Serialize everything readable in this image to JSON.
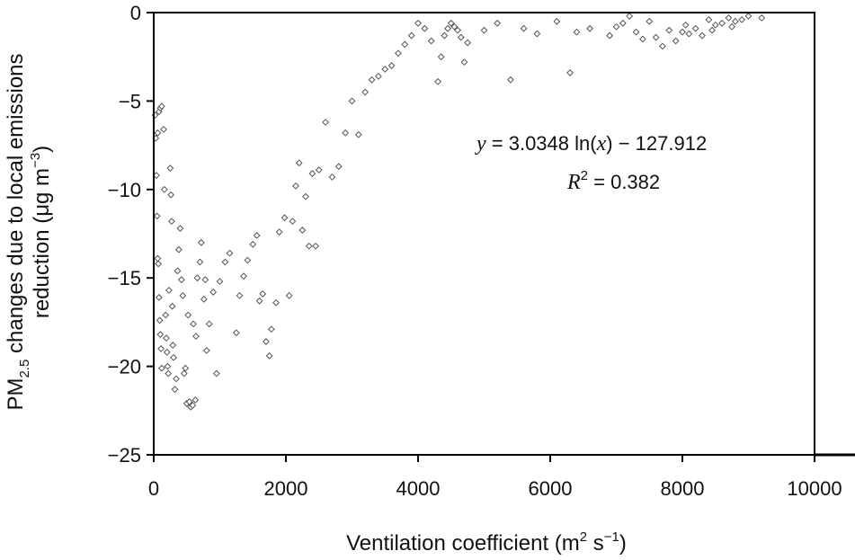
{
  "chart_data": {
    "type": "scatter",
    "xlabel": "Ventilation coefficient (m² s⁻¹)",
    "xlabel_parts": {
      "main": "Ventilation coefficient (m",
      "sup1": "2",
      "mid": " s",
      "sup2": "−1",
      "end": ")"
    },
    "ylabel_line1_parts": {
      "a": "PM",
      "sub": "2.5",
      "b": " changes due to local emissions"
    },
    "ylabel_line2_parts": {
      "a": "reduction (μg m",
      "sup": "−3",
      "b": ")"
    },
    "xlim": [
      0,
      10000
    ],
    "ylim": [
      -25,
      0
    ],
    "x_ticks": [
      0,
      2000,
      4000,
      6000,
      8000,
      10000
    ],
    "x_tick_labels": [
      "0",
      "2000",
      "4000",
      "6000",
      "8000",
      "10000"
    ],
    "y_ticks": [
      0,
      -5,
      -10,
      -15,
      -20,
      -25
    ],
    "y_tick_labels": [
      "0",
      "−5",
      "−10",
      "−15",
      "−20",
      "−25"
    ],
    "grid": false,
    "marker": "open-diamond",
    "marker_color": "#555555",
    "fit": {
      "a": 3.0348,
      "b": -127.912,
      "curve_color": "#000000",
      "equation_parts": {
        "y": "y",
        "eq1": " = 3.0348 ln(",
        "x": "x",
        "eq2": ") − 127.912"
      },
      "r2_parts": {
        "r": "R",
        "sup": "2",
        "rest": " = 0.382"
      }
    },
    "points": [
      [
        20,
        -5.8
      ],
      [
        30,
        -7.1
      ],
      [
        40,
        -9.2
      ],
      [
        50,
        -11.5
      ],
      [
        60,
        -13.9
      ],
      [
        70,
        -14.2
      ],
      [
        80,
        -16.1
      ],
      [
        90,
        -17.4
      ],
      [
        100,
        -18.2
      ],
      [
        110,
        -19.0
      ],
      [
        120,
        -20.1
      ],
      [
        60,
        -6.8
      ],
      [
        80,
        -5.6
      ],
      [
        100,
        -5.4
      ],
      [
        120,
        -5.3
      ],
      [
        150,
        -6.6
      ],
      [
        160,
        -10.0
      ],
      [
        180,
        -17.1
      ],
      [
        190,
        -18.4
      ],
      [
        200,
        -19.2
      ],
      [
        210,
        -20.0
      ],
      [
        220,
        -20.4
      ],
      [
        230,
        -15.7
      ],
      [
        250,
        -8.8
      ],
      [
        260,
        -10.3
      ],
      [
        270,
        -11.8
      ],
      [
        280,
        -16.6
      ],
      [
        290,
        -18.8
      ],
      [
        300,
        -19.5
      ],
      [
        320,
        -21.3
      ],
      [
        340,
        -20.7
      ],
      [
        360,
        -14.6
      ],
      [
        380,
        -13.4
      ],
      [
        400,
        -12.2
      ],
      [
        420,
        -15.1
      ],
      [
        440,
        -16.0
      ],
      [
        460,
        -20.4
      ],
      [
        480,
        -20.1
      ],
      [
        500,
        -22.1
      ],
      [
        540,
        -22.0
      ],
      [
        560,
        -22.3
      ],
      [
        590,
        -22.2
      ],
      [
        630,
        -21.9
      ],
      [
        520,
        -17.1
      ],
      [
        600,
        -17.6
      ],
      [
        640,
        -18.3
      ],
      [
        660,
        -15.0
      ],
      [
        700,
        -14.1
      ],
      [
        720,
        -13.0
      ],
      [
        760,
        -16.2
      ],
      [
        780,
        -15.1
      ],
      [
        800,
        -19.1
      ],
      [
        840,
        -17.6
      ],
      [
        900,
        -15.8
      ],
      [
        950,
        -20.4
      ],
      [
        1000,
        -15.2
      ],
      [
        1080,
        -14.1
      ],
      [
        1150,
        -13.6
      ],
      [
        1250,
        -18.1
      ],
      [
        1300,
        -16.0
      ],
      [
        1360,
        -14.9
      ],
      [
        1420,
        -14.0
      ],
      [
        1500,
        -13.1
      ],
      [
        1560,
        -12.6
      ],
      [
        1600,
        -16.3
      ],
      [
        1650,
        -15.9
      ],
      [
        1700,
        -18.6
      ],
      [
        1750,
        -19.4
      ],
      [
        1780,
        -17.9
      ],
      [
        1850,
        -16.4
      ],
      [
        1900,
        -12.4
      ],
      [
        1980,
        -11.6
      ],
      [
        2050,
        -16.0
      ],
      [
        2100,
        -11.8
      ],
      [
        2150,
        -9.8
      ],
      [
        2250,
        -12.3
      ],
      [
        2350,
        -13.2
      ],
      [
        2450,
        -13.2
      ],
      [
        2200,
        -8.5
      ],
      [
        2300,
        -10.4
      ],
      [
        2400,
        -9.1
      ],
      [
        2500,
        -8.9
      ],
      [
        2600,
        -6.2
      ],
      [
        2700,
        -9.3
      ],
      [
        2800,
        -8.7
      ],
      [
        2900,
        -6.8
      ],
      [
        3000,
        -5.0
      ],
      [
        3100,
        -6.9
      ],
      [
        3200,
        -4.5
      ],
      [
        3300,
        -3.8
      ],
      [
        3400,
        -3.6
      ],
      [
        3500,
        -3.2
      ],
      [
        3600,
        -3.0
      ],
      [
        3700,
        -2.3
      ],
      [
        3800,
        -1.8
      ],
      [
        3900,
        -1.3
      ],
      [
        4000,
        -0.6
      ],
      [
        4100,
        -0.9
      ],
      [
        4200,
        -1.6
      ],
      [
        4300,
        -3.9
      ],
      [
        4350,
        -2.5
      ],
      [
        4400,
        -1.3
      ],
      [
        4450,
        -0.9
      ],
      [
        4500,
        -0.6
      ],
      [
        4550,
        -0.8
      ],
      [
        4600,
        -1.0
      ],
      [
        4650,
        -1.4
      ],
      [
        4700,
        -2.8
      ],
      [
        4750,
        -1.7
      ],
      [
        5000,
        -1.0
      ],
      [
        5200,
        -0.6
      ],
      [
        5400,
        -3.8
      ],
      [
        5600,
        -0.9
      ],
      [
        6100,
        -0.5
      ],
      [
        6300,
        -3.4
      ],
      [
        6400,
        -1.1
      ],
      [
        6900,
        -1.3
      ],
      [
        7000,
        -0.8
      ],
      [
        7200,
        -0.2
      ],
      [
        7300,
        -1.1
      ],
      [
        7500,
        -0.5
      ],
      [
        7600,
        -1.4
      ],
      [
        7700,
        -1.9
      ],
      [
        7800,
        -1.0
      ],
      [
        7900,
        -1.6
      ],
      [
        8000,
        -1.1
      ],
      [
        8100,
        -1.2
      ],
      [
        8200,
        -0.9
      ],
      [
        8300,
        -1.3
      ],
      [
        8400,
        -0.4
      ],
      [
        8500,
        -0.7
      ],
      [
        8600,
        -0.6
      ],
      [
        8700,
        -0.3
      ],
      [
        8800,
        -0.5
      ],
      [
        8900,
        -0.4
      ],
      [
        9000,
        -0.2
      ],
      [
        9200,
        -0.3
      ],
      [
        5800,
        -1.2
      ],
      [
        6600,
        -0.9
      ],
      [
        7100,
        -0.6
      ],
      [
        7400,
        -1.5
      ],
      [
        8050,
        -0.7
      ],
      [
        8450,
        -1.0
      ],
      [
        8750,
        -0.8
      ]
    ]
  }
}
